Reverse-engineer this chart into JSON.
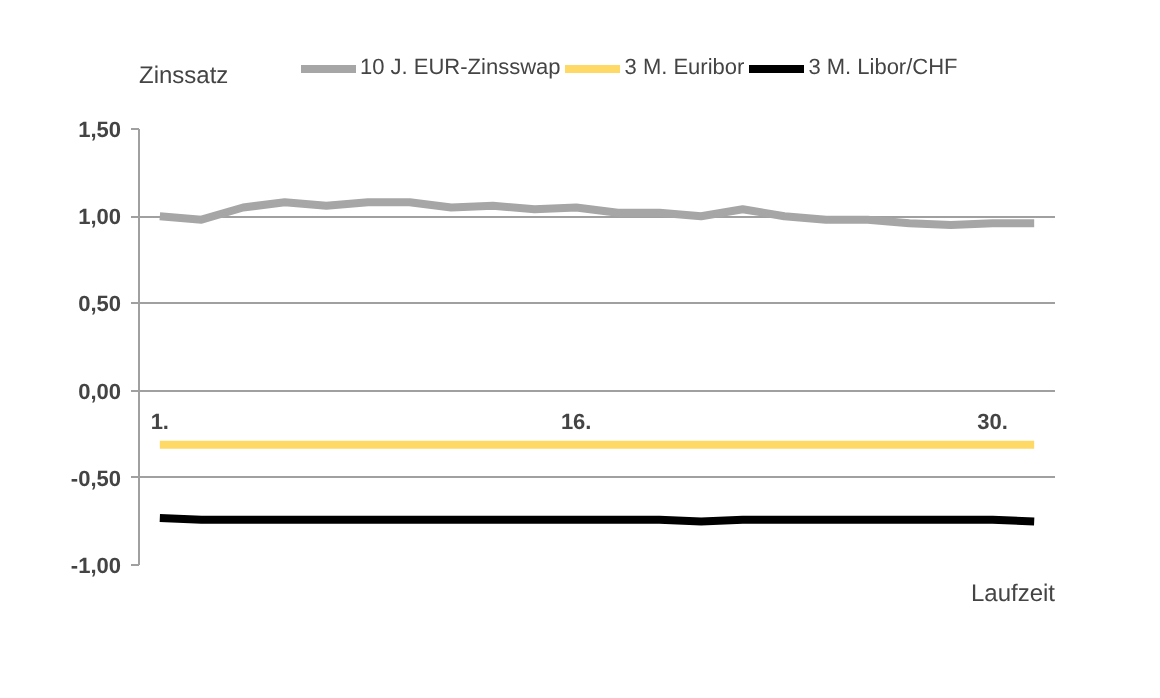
{
  "chart_data": {
    "type": "line",
    "ylabel": "Zinssatz",
    "xlabel": "Laufzeit",
    "categories": [
      "1.",
      null,
      null,
      null,
      null,
      null,
      null,
      null,
      null,
      null,
      "16.",
      null,
      null,
      null,
      null,
      null,
      null,
      null,
      null,
      null,
      "30.",
      null
    ],
    "series": [
      {
        "name": "10 J. EUR-Zinsswap",
        "color": "#a6a6a6",
        "values": [
          1.0,
          0.98,
          1.05,
          1.08,
          1.06,
          1.08,
          1.08,
          1.05,
          1.06,
          1.04,
          1.05,
          1.02,
          1.02,
          1.0,
          1.04,
          1.0,
          0.98,
          0.98,
          0.96,
          0.95,
          0.96,
          0.96
        ]
      },
      {
        "name": "3 M. Euribor",
        "color": "#ffd966",
        "values": [
          -0.31,
          -0.31,
          -0.31,
          -0.31,
          -0.31,
          -0.31,
          -0.31,
          -0.31,
          -0.31,
          -0.31,
          -0.31,
          -0.31,
          -0.31,
          -0.31,
          -0.31,
          -0.31,
          -0.31,
          -0.31,
          -0.31,
          -0.31,
          -0.31,
          -0.31
        ]
      },
      {
        "name": "3 M. Libor/CHF",
        "color": "#000000",
        "values": [
          -0.73,
          -0.74,
          -0.74,
          -0.74,
          -0.74,
          -0.74,
          -0.74,
          -0.74,
          -0.74,
          -0.74,
          -0.74,
          -0.74,
          -0.74,
          -0.75,
          -0.74,
          -0.74,
          -0.74,
          -0.74,
          -0.74,
          -0.74,
          -0.74,
          -0.75
        ]
      }
    ],
    "ylim": [
      -1.0,
      1.5
    ],
    "yticks": [
      {
        "value": -1.0,
        "label": "-1,00"
      },
      {
        "value": -0.5,
        "label": "-0,50"
      },
      {
        "value": 0,
        "label": "0,00"
      },
      {
        "value": 0.5,
        "label": "0,50"
      },
      {
        "value": 1.0,
        "label": "1,00"
      },
      {
        "value": 1.5,
        "label": "1,50"
      }
    ],
    "grid": "y",
    "legend": "top",
    "line_style": "solid",
    "marker": "none"
  }
}
